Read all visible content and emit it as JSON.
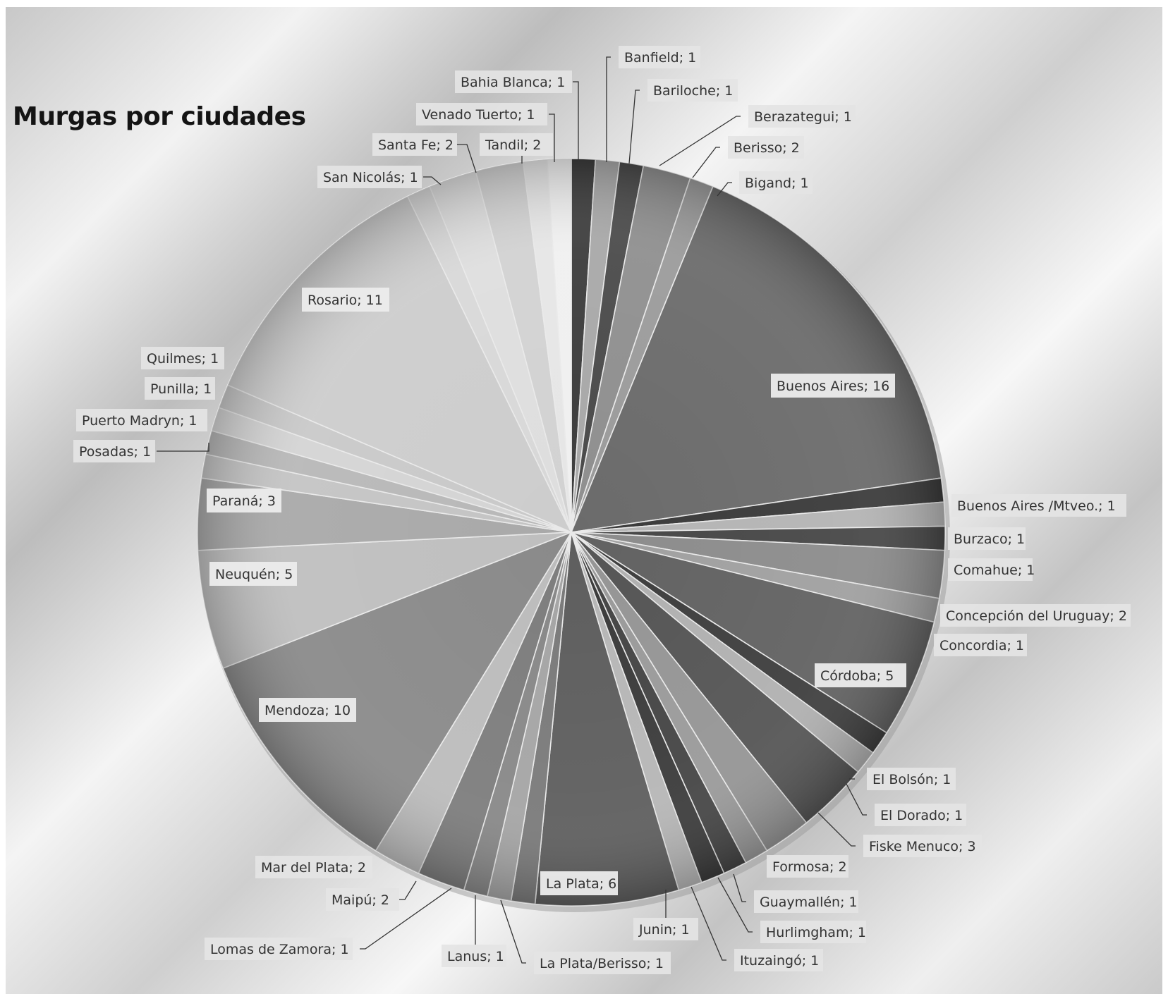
{
  "chart_data": {
    "type": "pie",
    "title": "Murgas por ciudades",
    "slices": [
      {
        "label": "Banfield; 1",
        "name": "Banfield",
        "value": 1,
        "color": "#3c3c3c"
      },
      {
        "label": "Bariloche; 1",
        "name": "Bariloche",
        "value": 1,
        "color": "#a8a8a8"
      },
      {
        "label": "Berazategui; 1",
        "name": "Berazategui",
        "value": 1,
        "color": "#4a4a4a"
      },
      {
        "label": "Berisso; 2",
        "name": "Berisso",
        "value": 2,
        "color": "#8f8f8f"
      },
      {
        "label": "Bigand; 1",
        "name": "Bigand",
        "value": 1,
        "color": "#9b9b9b"
      },
      {
        "label": "Buenos Aires; 16",
        "name": "Buenos Aires",
        "value": 16,
        "color": "#6b6b6b"
      },
      {
        "label": "Buenos Aires /Mtveo.; 1",
        "name": "Buenos Aires /Mtveo.",
        "value": 1,
        "color": "#3a3a3a"
      },
      {
        "label": "Burzaco; 1",
        "name": "Burzaco",
        "value": 1,
        "color": "#b4b4b4"
      },
      {
        "label": "Comahue; 1",
        "name": "Comahue",
        "value": 1,
        "color": "#474747"
      },
      {
        "label": "Concepción del Uruguay; 2",
        "name": "Concepción del Uruguay",
        "value": 2,
        "color": "#8c8c8c"
      },
      {
        "label": "Concordia; 1",
        "name": "Concordia",
        "value": 1,
        "color": "#a0a0a0"
      },
      {
        "label": "Córdoba; 5",
        "name": "Córdoba",
        "value": 5,
        "color": "#626262"
      },
      {
        "label": "El Bolsón; 1",
        "name": "El Bolsón",
        "value": 1,
        "color": "#3e3e3e"
      },
      {
        "label": "El Dorado; 1",
        "name": "El Dorado",
        "value": 1,
        "color": "#b0b0b0"
      },
      {
        "label": "Fiske Menuco; 3",
        "name": "Fiske Menuco",
        "value": 3,
        "color": "#555555"
      },
      {
        "label": "Formosa; 2",
        "name": "Formosa",
        "value": 2,
        "color": "#959595"
      },
      {
        "label": "Guaymallén; 1",
        "name": "Guaymallén",
        "value": 1,
        "color": "#9a9a9a"
      },
      {
        "label": "Hurlimgham; 1",
        "name": "Hurlimgham",
        "value": 1,
        "color": "#454545"
      },
      {
        "label": "Ituzaingó; 1",
        "name": "Ituzaingó",
        "value": 1,
        "color": "#3b3b3b"
      },
      {
        "label": "Junin; 1",
        "name": "Junin",
        "value": 1,
        "color": "#b6b6b6"
      },
      {
        "label": "La Plata; 6",
        "name": "La Plata",
        "value": 6,
        "color": "#5e5e5e"
      },
      {
        "label": "La Plata/Berisso; 1",
        "name": "La Plata/Berisso",
        "value": 1,
        "color": "#7a7a7a"
      },
      {
        "label": "Lanus; 1",
        "name": "Lanus",
        "value": 1,
        "color": "#a5a5a5"
      },
      {
        "label": "Lomas de Zamora; 1",
        "name": "Lomas de Zamora",
        "value": 1,
        "color": "#888888"
      },
      {
        "label": "Maipú; 2",
        "name": "Maipú",
        "value": 2,
        "color": "#7d7d7d"
      },
      {
        "label": "Mar del Plata; 2",
        "name": "Mar del Plata",
        "value": 2,
        "color": "#bcbcbc"
      },
      {
        "label": "Mendoza; 10",
        "name": "Mendoza",
        "value": 10,
        "color": "#8a8a8a"
      },
      {
        "label": "Neuquén; 5",
        "name": "Neuquén",
        "value": 5,
        "color": "#bfbfbf"
      },
      {
        "label": "Paraná; 3",
        "name": "Paraná",
        "value": 3,
        "color": "#a9a9a9"
      },
      {
        "label": "Posadas; 1",
        "name": "Posadas",
        "value": 1,
        "color": "#c4c4c4"
      },
      {
        "label": "Puerto Madryn; 1",
        "name": "Puerto Madryn",
        "value": 1,
        "color": "#b8b8b8"
      },
      {
        "label": "Punilla; 1",
        "name": "Punilla",
        "value": 1,
        "color": "#d4d4d4"
      },
      {
        "label": "Quilmes; 1",
        "name": "Quilmes",
        "value": 1,
        "color": "#c9c9c9"
      },
      {
        "label": "Rosario; 11",
        "name": "Rosario",
        "value": 11,
        "color": "#cdcdcd"
      },
      {
        "label": "San Nicolás; 1",
        "name": "San Nicolás",
        "value": 1,
        "color": "#d8d8d8"
      },
      {
        "label": "Santa Fe; 2",
        "name": "Santa Fe",
        "value": 2,
        "color": "#dedede"
      },
      {
        "label": "Tandil; 2",
        "name": "Tandil",
        "value": 2,
        "color": "#d2d2d2"
      },
      {
        "label": "Venado Tuerto; 1",
        "name": "Venado Tuerto",
        "value": 1,
        "color": "#e6e6e6"
      },
      {
        "label": "Bahia Blanca; 1",
        "name": "Bahia Blanca",
        "value": 1,
        "color": "#f0f0f0"
      }
    ]
  }
}
